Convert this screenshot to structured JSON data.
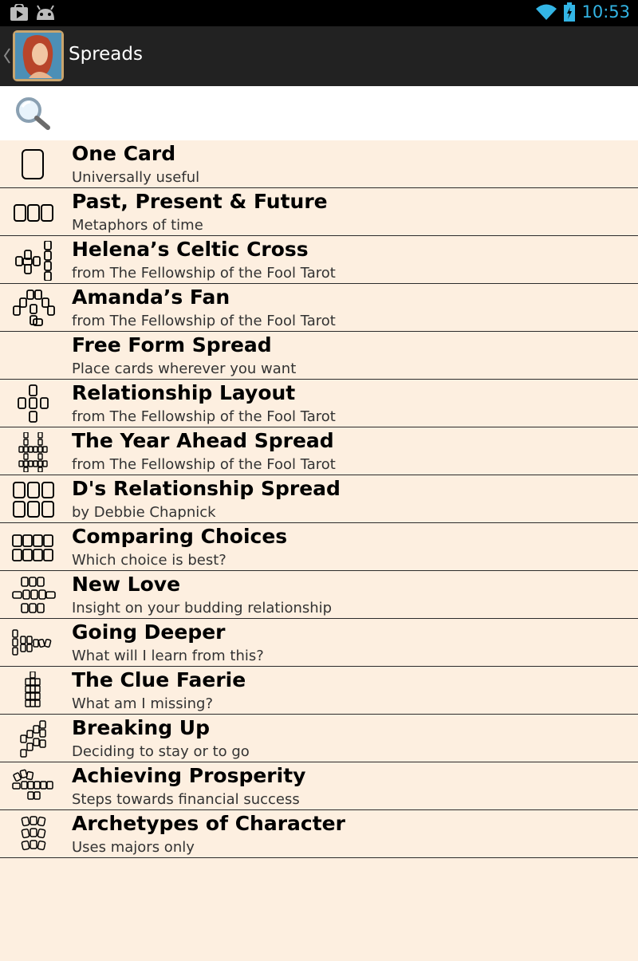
{
  "status_bar": {
    "time": "10:53",
    "icons": [
      "play-store-icon",
      "android-icon",
      "wifi-icon",
      "battery-charging-icon"
    ],
    "clock_color": "#33b5e5"
  },
  "action_bar": {
    "title": "Spreads",
    "background": "#222222"
  },
  "search": {
    "placeholder": "",
    "value": ""
  },
  "list_background": "#fdefe0",
  "spreads": [
    {
      "title": "One Card",
      "subtitle": "Universally useful",
      "icon": "one-card-spread-icon"
    },
    {
      "title": "Past, Present & Future",
      "subtitle": "Metaphors of time",
      "icon": "three-card-spread-icon"
    },
    {
      "title": "Helena’s Celtic Cross",
      "subtitle": "from The Fellowship of the Fool Tarot",
      "icon": "celtic-cross-spread-icon"
    },
    {
      "title": "Amanda’s Fan",
      "subtitle": "from The Fellowship of the Fool Tarot",
      "icon": "fan-spread-icon"
    },
    {
      "title": "Free Form Spread",
      "subtitle": "Place cards wherever you want",
      "icon": ""
    },
    {
      "title": "Relationship Layout",
      "subtitle": "from The Fellowship of the Fool Tarot",
      "icon": "relationship-layout-spread-icon"
    },
    {
      "title": "The Year Ahead Spread",
      "subtitle": "from The Fellowship of the Fool Tarot",
      "icon": "year-ahead-spread-icon"
    },
    {
      "title": "D's Relationship Spread",
      "subtitle": "by Debbie Chapnick",
      "icon": "two-rows-three-spread-icon"
    },
    {
      "title": "Comparing Choices",
      "subtitle": "Which choice is best?",
      "icon": "two-rows-four-spread-icon"
    },
    {
      "title": "New Love",
      "subtitle": "Insight on your budding relationship",
      "icon": "new-love-spread-icon"
    },
    {
      "title": "Going Deeper",
      "subtitle": "What will I learn from this?",
      "icon": "going-deeper-spread-icon"
    },
    {
      "title": "The Clue Faerie",
      "subtitle": "What am I missing?",
      "icon": "clue-faerie-spread-icon"
    },
    {
      "title": "Breaking Up",
      "subtitle": "Deciding to stay or to go",
      "icon": "breaking-up-spread-icon"
    },
    {
      "title": "Achieving Prosperity",
      "subtitle": "Steps towards financial success",
      "icon": "prosperity-spread-icon"
    },
    {
      "title": "Archetypes of Character",
      "subtitle": "Uses majors only",
      "icon": "archetypes-spread-icon"
    }
  ]
}
